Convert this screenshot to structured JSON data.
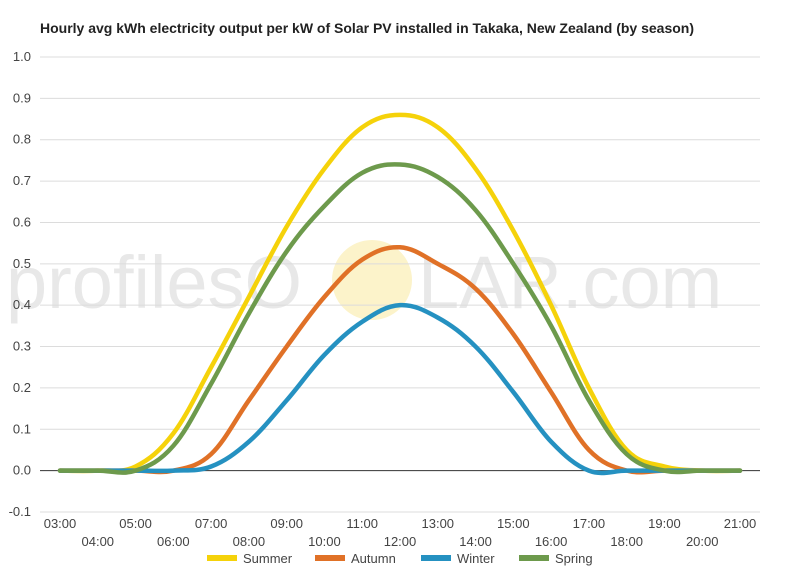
{
  "title": "Hourly avg kWh electricity output per kW of Solar PV installed in Takaka, New Zealand (by season)",
  "watermark": {
    "left": "profilesO",
    "right": "LAR.com"
  },
  "chart_data": {
    "type": "line",
    "xlabel": "",
    "ylabel": "",
    "ylim": [
      -0.1,
      1.0
    ],
    "yticks": [
      -0.1,
      0.0,
      0.1,
      0.2,
      0.3,
      0.4,
      0.5,
      0.6,
      0.7,
      0.8,
      0.9,
      1.0
    ],
    "ytick_labels": [
      "-0.1",
      "0.0",
      "0.1",
      "0.2",
      "0.3",
      "0.4",
      "0.5",
      "0.6",
      "0.7",
      "0.8",
      "0.9",
      "1.0"
    ],
    "x": [
      "03:00",
      "04:00",
      "05:00",
      "06:00",
      "07:00",
      "08:00",
      "09:00",
      "10:00",
      "11:00",
      "12:00",
      "13:00",
      "14:00",
      "15:00",
      "16:00",
      "17:00",
      "18:00",
      "19:00",
      "20:00",
      "21:00"
    ],
    "grid": true,
    "legend_position": "bottom",
    "series": [
      {
        "name": "Summer",
        "color": "#f5d20a",
        "values": [
          0.0,
          0.0,
          0.01,
          0.09,
          0.25,
          0.42,
          0.59,
          0.73,
          0.83,
          0.86,
          0.83,
          0.73,
          0.58,
          0.4,
          0.2,
          0.05,
          0.01,
          0.0,
          0.0
        ]
      },
      {
        "name": "Autumn",
        "color": "#e07127",
        "values": [
          0.0,
          0.0,
          0.0,
          0.0,
          0.04,
          0.17,
          0.3,
          0.42,
          0.51,
          0.54,
          0.5,
          0.44,
          0.33,
          0.19,
          0.05,
          0.0,
          0.0,
          0.0,
          0.0
        ]
      },
      {
        "name": "Winter",
        "color": "#2591c1",
        "values": [
          0.0,
          0.0,
          0.0,
          0.0,
          0.01,
          0.07,
          0.17,
          0.28,
          0.36,
          0.4,
          0.37,
          0.3,
          0.19,
          0.07,
          0.0,
          0.0,
          0.0,
          0.0,
          0.0
        ]
      },
      {
        "name": "Spring",
        "color": "#6d9a4c",
        "values": [
          0.0,
          0.0,
          0.0,
          0.06,
          0.21,
          0.38,
          0.53,
          0.64,
          0.72,
          0.74,
          0.71,
          0.63,
          0.5,
          0.35,
          0.17,
          0.04,
          0.0,
          0.0,
          0.0
        ]
      }
    ]
  }
}
